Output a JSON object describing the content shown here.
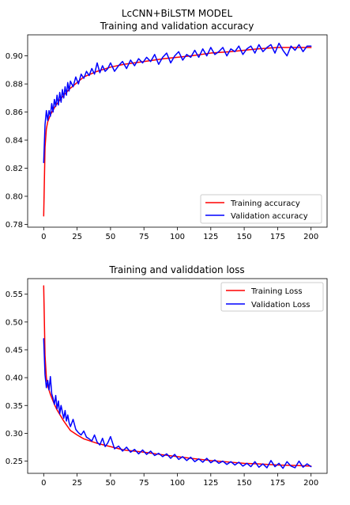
{
  "chart_data": [
    {
      "type": "line",
      "title": "LcCNN+BiLSTM MODEL",
      "subtitle": "Training and validation accuracy",
      "xlabel": "",
      "ylabel": "",
      "xlim": [
        -12,
        212
      ],
      "ylim": [
        0.778,
        0.915
      ],
      "xticks": [
        0,
        25,
        50,
        75,
        100,
        125,
        150,
        175,
        200
      ],
      "yticks": [
        0.78,
        0.8,
        0.82,
        0.84,
        0.86,
        0.88,
        0.9
      ],
      "ytick_labels": [
        "0.78",
        "0.80",
        "0.82",
        "0.84",
        "0.86",
        "0.88",
        "0.90"
      ],
      "grid": false,
      "legend_position": "lower-right",
      "colors": {
        "training": "#ff0000",
        "validation": "#0000ff"
      },
      "series": [
        {
          "name": "Training accuracy",
          "color": "#ff0000",
          "x": [
            0,
            1,
            2,
            3,
            5,
            8,
            10,
            15,
            20,
            25,
            30,
            40,
            50,
            60,
            75,
            90,
            100,
            110,
            125,
            140,
            150,
            160,
            175,
            190,
            200
          ],
          "y": [
            0.786,
            0.835,
            0.848,
            0.853,
            0.858,
            0.863,
            0.866,
            0.872,
            0.877,
            0.881,
            0.885,
            0.889,
            0.892,
            0.894,
            0.896,
            0.898,
            0.899,
            0.9,
            0.902,
            0.903,
            0.904,
            0.905,
            0.906,
            0.906,
            0.906
          ]
        },
        {
          "name": "Validation accuracy",
          "color": "#0000ff",
          "x": [
            0,
            1,
            2,
            3,
            4,
            5,
            6,
            7,
            8,
            9,
            10,
            11,
            12,
            13,
            14,
            15,
            16,
            17,
            18,
            19,
            20,
            22,
            24,
            26,
            28,
            30,
            32,
            34,
            36,
            38,
            40,
            42,
            44,
            46,
            48,
            50,
            53,
            56,
            59,
            62,
            65,
            68,
            71,
            74,
            77,
            80,
            83,
            86,
            89,
            92,
            95,
            98,
            101,
            104,
            107,
            110,
            113,
            116,
            119,
            122,
            125,
            128,
            131,
            134,
            137,
            140,
            143,
            146,
            149,
            152,
            155,
            158,
            161,
            164,
            167,
            170,
            173,
            176,
            179,
            182,
            185,
            188,
            191,
            194,
            197,
            200
          ],
          "y": [
            0.824,
            0.851,
            0.861,
            0.854,
            0.861,
            0.857,
            0.866,
            0.86,
            0.869,
            0.864,
            0.872,
            0.865,
            0.874,
            0.867,
            0.876,
            0.87,
            0.878,
            0.872,
            0.881,
            0.875,
            0.882,
            0.878,
            0.885,
            0.88,
            0.887,
            0.884,
            0.889,
            0.886,
            0.891,
            0.887,
            0.895,
            0.888,
            0.893,
            0.889,
            0.891,
            0.895,
            0.889,
            0.893,
            0.896,
            0.891,
            0.897,
            0.893,
            0.898,
            0.895,
            0.899,
            0.896,
            0.901,
            0.894,
            0.899,
            0.902,
            0.895,
            0.9,
            0.903,
            0.897,
            0.901,
            0.899,
            0.904,
            0.899,
            0.905,
            0.9,
            0.906,
            0.901,
            0.903,
            0.906,
            0.9,
            0.905,
            0.903,
            0.907,
            0.901,
            0.905,
            0.907,
            0.902,
            0.908,
            0.903,
            0.906,
            0.908,
            0.902,
            0.909,
            0.904,
            0.9,
            0.907,
            0.904,
            0.908,
            0.903,
            0.907,
            0.907
          ]
        }
      ]
    },
    {
      "type": "line",
      "title": "Training and validdation loss",
      "xlabel": "",
      "ylabel": "",
      "xlim": [
        -12,
        212
      ],
      "ylim": [
        0.228,
        0.578
      ],
      "xticks": [
        0,
        25,
        50,
        75,
        100,
        125,
        150,
        175,
        200
      ],
      "yticks": [
        0.25,
        0.3,
        0.35,
        0.4,
        0.45,
        0.5,
        0.55
      ],
      "ytick_labels": [
        "0.25",
        "0.30",
        "0.35",
        "0.40",
        "0.45",
        "0.50",
        "0.55"
      ],
      "grid": false,
      "legend_position": "upper-right",
      "colors": {
        "training": "#ff0000",
        "validation": "#0000ff"
      },
      "series": [
        {
          "name": "Training Loss",
          "color": "#ff0000",
          "x": [
            0,
            1,
            2,
            3,
            5,
            8,
            10,
            15,
            20,
            25,
            30,
            40,
            50,
            60,
            75,
            90,
            100,
            110,
            125,
            140,
            150,
            160,
            175,
            190,
            200
          ],
          "y": [
            0.565,
            0.44,
            0.4,
            0.385,
            0.37,
            0.352,
            0.342,
            0.322,
            0.305,
            0.297,
            0.29,
            0.282,
            0.276,
            0.27,
            0.266,
            0.261,
            0.258,
            0.255,
            0.251,
            0.248,
            0.246,
            0.245,
            0.243,
            0.242,
            0.241
          ]
        },
        {
          "name": "Validation Loss",
          "color": "#0000ff",
          "x": [
            0,
            1,
            2,
            3,
            4,
            5,
            6,
            7,
            8,
            9,
            10,
            11,
            12,
            13,
            14,
            15,
            16,
            17,
            18,
            19,
            20,
            22,
            24,
            26,
            28,
            30,
            32,
            34,
            36,
            38,
            40,
            42,
            44,
            46,
            48,
            50,
            53,
            56,
            59,
            62,
            65,
            68,
            71,
            74,
            77,
            80,
            83,
            86,
            89,
            92,
            95,
            98,
            101,
            104,
            107,
            110,
            113,
            116,
            119,
            122,
            125,
            128,
            131,
            134,
            137,
            140,
            143,
            146,
            149,
            152,
            155,
            158,
            161,
            164,
            167,
            170,
            173,
            176,
            179,
            182,
            185,
            188,
            191,
            194,
            197,
            200
          ],
          "y": [
            0.47,
            0.405,
            0.382,
            0.395,
            0.378,
            0.402,
            0.371,
            0.363,
            0.352,
            0.368,
            0.344,
            0.358,
            0.335,
            0.35,
            0.338,
            0.327,
            0.341,
            0.322,
            0.333,
            0.319,
            0.312,
            0.325,
            0.307,
            0.301,
            0.297,
            0.304,
            0.293,
            0.29,
            0.286,
            0.297,
            0.284,
            0.279,
            0.291,
            0.276,
            0.283,
            0.294,
            0.272,
            0.277,
            0.268,
            0.275,
            0.266,
            0.271,
            0.263,
            0.27,
            0.262,
            0.268,
            0.26,
            0.264,
            0.258,
            0.263,
            0.255,
            0.262,
            0.253,
            0.258,
            0.251,
            0.257,
            0.249,
            0.254,
            0.248,
            0.255,
            0.247,
            0.252,
            0.246,
            0.25,
            0.244,
            0.249,
            0.243,
            0.248,
            0.241,
            0.246,
            0.24,
            0.249,
            0.239,
            0.245,
            0.238,
            0.251,
            0.24,
            0.246,
            0.237,
            0.249,
            0.241,
            0.238,
            0.25,
            0.239,
            0.245,
            0.24
          ]
        }
      ]
    }
  ]
}
